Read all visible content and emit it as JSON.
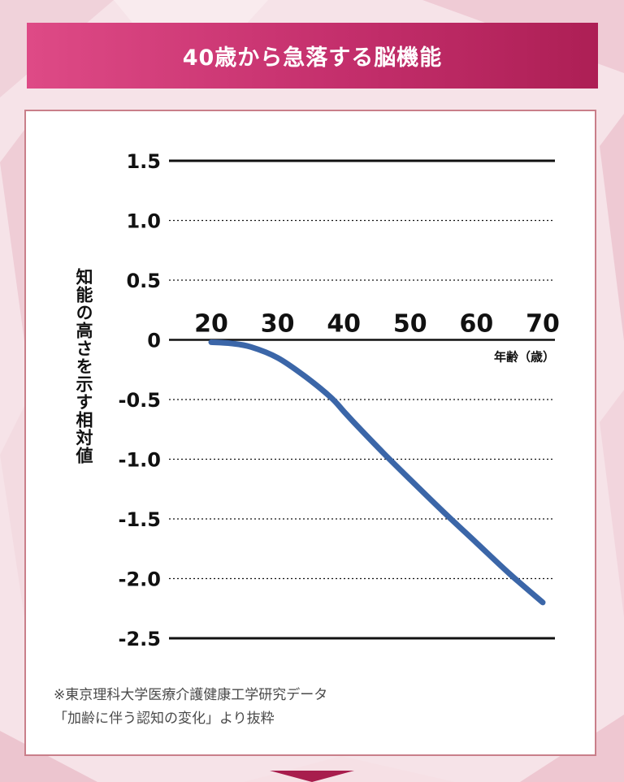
{
  "title": "40歳から急落する脳機能",
  "colors": {
    "banner_start": "#de4a86",
    "banner_end": "#ad1f55",
    "line": "#3b66a8",
    "panel_border": "#c97f8a",
    "background": "#f6e3e8"
  },
  "source": {
    "line1": "※東京理科大学医療介護健康工学研究データ",
    "line2": "「加齢に伴う認知の変化」より抜粋"
  },
  "chart_data": {
    "type": "line",
    "ylabel": "知能の高さを示す相対値",
    "xlabel": "年齢（歳）",
    "x_ticks": [
      "20",
      "30",
      "40",
      "50",
      "60",
      "70"
    ],
    "y_ticks": [
      "1.5",
      "1.0",
      "0.5",
      "0",
      "-0.5",
      "-1.0",
      "-1.5",
      "-2.0",
      "-2.5"
    ],
    "xlim": [
      20,
      70
    ],
    "ylim": [
      -2.5,
      1.5
    ],
    "grid": "dotted horizontal",
    "series": [
      {
        "x": [
          20,
          23,
          26,
          30,
          34,
          38,
          40,
          42,
          46,
          50,
          55,
          60,
          65,
          70
        ],
        "y": [
          -0.02,
          -0.03,
          -0.06,
          -0.15,
          -0.3,
          -0.48,
          -0.6,
          -0.72,
          -0.95,
          -1.17,
          -1.44,
          -1.7,
          -1.96,
          -2.2
        ]
      }
    ]
  }
}
